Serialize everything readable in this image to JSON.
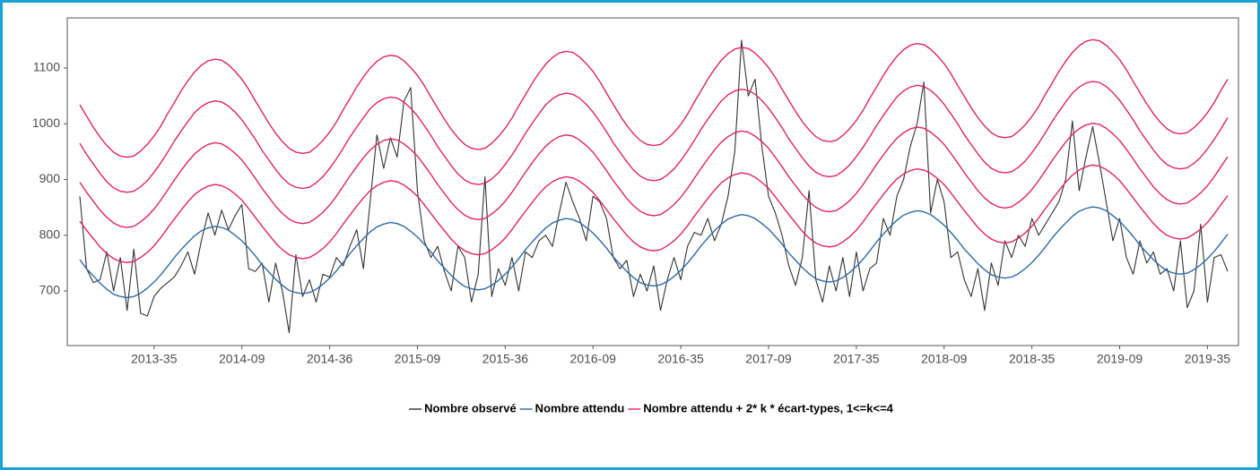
{
  "chart_data": {
    "type": "line",
    "categories": [
      null,
      null,
      null,
      null,
      null,
      null,
      null,
      null,
      null,
      null,
      null,
      "2013-35",
      null,
      null,
      null,
      null,
      null,
      null,
      null,
      null,
      null,
      null,
      null,
      null,
      "2014-09",
      null,
      null,
      null,
      null,
      null,
      null,
      null,
      null,
      null,
      null,
      null,
      null,
      "2014-36",
      null,
      null,
      null,
      null,
      null,
      null,
      null,
      null,
      null,
      null,
      null,
      null,
      "2015-09",
      null,
      null,
      null,
      null,
      null,
      null,
      null,
      null,
      null,
      null,
      null,
      null,
      "2015-36",
      null,
      null,
      null,
      null,
      null,
      null,
      null,
      null,
      null,
      null,
      null,
      null,
      "2016-09",
      null,
      null,
      null,
      null,
      null,
      null,
      null,
      null,
      null,
      null,
      null,
      null,
      "2016-35",
      null,
      null,
      null,
      null,
      null,
      null,
      null,
      null,
      null,
      null,
      null,
      null,
      "2017-09",
      null,
      null,
      null,
      null,
      null,
      null,
      null,
      null,
      null,
      null,
      null,
      null,
      "2017-35",
      null,
      null,
      null,
      null,
      null,
      null,
      null,
      null,
      null,
      null,
      null,
      null,
      "2018-09",
      null,
      null,
      null,
      null,
      null,
      null,
      null,
      null,
      null,
      null,
      null,
      null,
      "2018-35",
      null,
      null,
      null,
      null,
      null,
      null,
      null,
      null,
      null,
      null,
      null,
      null,
      "2019-09",
      null,
      null,
      null,
      null,
      null,
      null,
      null,
      null,
      null,
      null,
      null,
      null,
      "2019-35",
      null,
      null,
      null
    ],
    "series": [
      {
        "name": "Nombre observé",
        "color": "#333333",
        "values": [
          870,
          740,
          715,
          720,
          770,
          700,
          760,
          665,
          775,
          660,
          655,
          690,
          705,
          715,
          725,
          745,
          770,
          730,
          790,
          840,
          800,
          845,
          810,
          835,
          855,
          740,
          735,
          750,
          680,
          750,
          700,
          625,
          765,
          690,
          720,
          680,
          730,
          725,
          760,
          745,
          780,
          810,
          740,
          860,
          980,
          920,
          975,
          940,
          1040,
          1065,
          880,
          790,
          760,
          780,
          735,
          700,
          780,
          760,
          680,
          730,
          905,
          690,
          740,
          710,
          760,
          700,
          770,
          760,
          790,
          800,
          780,
          840,
          895,
          860,
          830,
          790,
          870,
          860,
          830,
          760,
          740,
          755,
          690,
          730,
          700,
          745,
          665,
          720,
          760,
          720,
          780,
          805,
          800,
          830,
          790,
          820,
          870,
          950,
          1150,
          1050,
          1080,
          960,
          870,
          840,
          800,
          745,
          710,
          760,
          880,
          720,
          680,
          745,
          700,
          760,
          690,
          770,
          700,
          740,
          750,
          830,
          800,
          870,
          900,
          960,
          1000,
          1075,
          840,
          900,
          860,
          760,
          770,
          720,
          690,
          740,
          665,
          750,
          710,
          790,
          760,
          800,
          780,
          830,
          800,
          820,
          840,
          860,
          900,
          1005,
          880,
          940,
          995,
          930,
          860,
          790,
          830,
          760,
          730,
          790,
          750,
          770,
          730,
          740,
          700,
          790,
          670,
          700,
          820,
          680,
          760,
          765,
          735
        ]
      },
      {
        "name": "Nombre attendu",
        "color": "#2d6aa6",
        "values": [
          756,
          740,
          727,
          714,
          703,
          694,
          690,
          688,
          690,
          696,
          705,
          716,
          729,
          744,
          760,
          774,
          787,
          799,
          808,
          813,
          816,
          814,
          809,
          800,
          790,
          777,
          763,
          747,
          734,
          721,
          710,
          701,
          697,
          695,
          697,
          703,
          712,
          723,
          736,
          751,
          767,
          781,
          794,
          806,
          815,
          820,
          823,
          821,
          816,
          807,
          797,
          784,
          770,
          754,
          741,
          728,
          717,
          708,
          704,
          702,
          704,
          710,
          719,
          730,
          743,
          758,
          774,
          788,
          801,
          813,
          822,
          827,
          830,
          828,
          823,
          814,
          804,
          791,
          777,
          761,
          748,
          735,
          724,
          715,
          711,
          709,
          711,
          717,
          726,
          737,
          750,
          765,
          781,
          795,
          808,
          820,
          829,
          834,
          837,
          835,
          830,
          821,
          811,
          798,
          784,
          768,
          755,
          742,
          731,
          722,
          718,
          716,
          718,
          724,
          733,
          744,
          757,
          772,
          788,
          802,
          815,
          827,
          836,
          841,
          844,
          842,
          837,
          828,
          818,
          805,
          791,
          775,
          762,
          749,
          738,
          729,
          725,
          723,
          725,
          731,
          740,
          751,
          764,
          779,
          795,
          809,
          822,
          834,
          843,
          848,
          851,
          849,
          844,
          835,
          825,
          812,
          798,
          782,
          769,
          756,
          745,
          736,
          732,
          730,
          732,
          738,
          747,
          758,
          771,
          786,
          802
        ]
      },
      {
        "name": "Nombre attendu + 2* k * écart-types, 1<=k<=4",
        "color": "#e0245e",
        "values": [
          [
            825,
            809,
            794,
            779,
            767,
            758,
            753,
            751,
            753,
            760,
            769,
            781,
            796,
            813,
            829,
            845,
            860,
            873,
            882,
            888,
            891,
            889,
            883,
            874,
            863,
            848,
            832,
            816,
            801,
            786,
            774,
            765,
            760,
            758,
            760,
            767,
            776,
            788,
            803,
            820,
            836,
            852,
            867,
            880,
            889,
            895,
            898,
            896,
            890,
            881,
            870,
            855,
            839,
            823,
            808,
            793,
            781,
            772,
            767,
            765,
            767,
            774,
            783,
            795,
            810,
            827,
            843,
            859,
            874,
            887,
            896,
            902,
            905,
            903,
            897,
            888,
            877,
            862,
            846,
            830,
            815,
            800,
            788,
            779,
            774,
            772,
            774,
            781,
            790,
            802,
            817,
            834,
            850,
            866,
            881,
            894,
            903,
            909,
            912,
            910,
            904,
            895,
            884,
            869,
            853,
            837,
            822,
            807,
            795,
            786,
            781,
            779,
            781,
            788,
            797,
            809,
            824,
            841,
            857,
            873,
            888,
            901,
            910,
            916,
            919,
            917,
            911,
            902,
            891,
            876,
            860,
            844,
            829,
            814,
            802,
            793,
            788,
            786,
            788,
            795,
            804,
            816,
            831,
            848,
            864,
            880,
            895,
            908,
            917,
            923,
            926,
            924,
            918,
            909,
            898,
            883,
            867,
            851,
            836,
            821,
            809,
            800,
            795,
            793,
            795,
            802,
            811,
            823,
            838,
            855,
            871
          ],
          [
            895,
            877,
            861,
            845,
            832,
            822,
            816,
            814,
            816,
            824,
            834,
            847,
            863,
            881,
            899,
            916,
            932,
            946,
            956,
            963,
            966,
            964,
            957,
            947,
            935,
            919,
            902,
            884,
            868,
            852,
            839,
            829,
            823,
            821,
            823,
            831,
            841,
            854,
            870,
            888,
            906,
            923,
            939,
            953,
            963,
            970,
            973,
            971,
            964,
            954,
            942,
            926,
            909,
            891,
            875,
            859,
            846,
            836,
            830,
            828,
            830,
            838,
            848,
            861,
            877,
            895,
            913,
            930,
            946,
            960,
            970,
            977,
            980,
            978,
            971,
            961,
            949,
            933,
            916,
            898,
            882,
            866,
            853,
            843,
            837,
            835,
            837,
            845,
            855,
            868,
            884,
            902,
            920,
            937,
            953,
            967,
            977,
            984,
            987,
            985,
            978,
            968,
            956,
            940,
            923,
            905,
            889,
            873,
            860,
            850,
            844,
            842,
            844,
            852,
            862,
            875,
            891,
            909,
            927,
            944,
            960,
            974,
            984,
            991,
            994,
            992,
            985,
            975,
            963,
            947,
            930,
            912,
            896,
            880,
            867,
            857,
            851,
            849,
            851,
            859,
            869,
            882,
            898,
            916,
            934,
            951,
            967,
            981,
            991,
            998,
            1001,
            999,
            992,
            982,
            970,
            954,
            937,
            919,
            903,
            887,
            874,
            864,
            858,
            856,
            858,
            866,
            876,
            889,
            905,
            923,
            941
          ],
          [
            965,
            945,
            928,
            911,
            896,
            885,
            879,
            877,
            879,
            887,
            898,
            913,
            930,
            949,
            969,
            987,
            1004,
            1020,
            1031,
            1038,
            1041,
            1039,
            1032,
            1021,
            1007,
            990,
            972,
            952,
            935,
            918,
            903,
            892,
            886,
            884,
            886,
            894,
            905,
            920,
            937,
            956,
            976,
            994,
            1011,
            1027,
            1038,
            1045,
            1048,
            1046,
            1039,
            1028,
            1014,
            997,
            979,
            959,
            942,
            925,
            910,
            899,
            893,
            891,
            893,
            901,
            912,
            927,
            944,
            963,
            983,
            1001,
            1018,
            1034,
            1045,
            1052,
            1055,
            1053,
            1046,
            1035,
            1021,
            1004,
            986,
            966,
            949,
            932,
            917,
            906,
            900,
            898,
            900,
            908,
            919,
            934,
            951,
            970,
            990,
            1008,
            1025,
            1041,
            1052,
            1059,
            1062,
            1060,
            1053,
            1042,
            1028,
            1011,
            993,
            973,
            956,
            939,
            924,
            913,
            907,
            905,
            907,
            915,
            926,
            941,
            958,
            977,
            997,
            1015,
            1032,
            1048,
            1059,
            1066,
            1069,
            1067,
            1060,
            1049,
            1035,
            1018,
            1000,
            980,
            963,
            946,
            931,
            920,
            914,
            912,
            914,
            922,
            933,
            948,
            965,
            984,
            1004,
            1022,
            1039,
            1055,
            1066,
            1073,
            1076,
            1074,
            1067,
            1056,
            1042,
            1025,
            1007,
            987,
            970,
            953,
            938,
            927,
            921,
            919,
            921,
            929,
            940,
            955,
            972,
            991,
            1011
          ],
          [
            1034,
            1014,
            994,
            976,
            961,
            949,
            942,
            940,
            942,
            951,
            963,
            978,
            996,
            1018,
            1038,
            1059,
            1077,
            1093,
            1105,
            1113,
            1116,
            1114,
            1106,
            1094,
            1080,
            1062,
            1041,
            1021,
            1001,
            983,
            968,
            956,
            949,
            947,
            949,
            958,
            970,
            985,
            1003,
            1025,
            1045,
            1066,
            1084,
            1100,
            1112,
            1120,
            1123,
            1121,
            1113,
            1101,
            1087,
            1069,
            1048,
            1028,
            1008,
            990,
            975,
            963,
            956,
            954,
            956,
            965,
            977,
            992,
            1010,
            1032,
            1052,
            1073,
            1091,
            1107,
            1119,
            1127,
            1130,
            1128,
            1120,
            1108,
            1094,
            1076,
            1055,
            1035,
            1015,
            997,
            982,
            970,
            963,
            961,
            963,
            972,
            984,
            999,
            1017,
            1039,
            1059,
            1080,
            1098,
            1114,
            1126,
            1134,
            1137,
            1135,
            1127,
            1115,
            1101,
            1083,
            1062,
            1042,
            1022,
            1004,
            989,
            977,
            970,
            968,
            970,
            979,
            991,
            1006,
            1024,
            1046,
            1066,
            1087,
            1105,
            1121,
            1133,
            1141,
            1144,
            1142,
            1134,
            1122,
            1108,
            1090,
            1069,
            1049,
            1029,
            1011,
            996,
            984,
            977,
            975,
            977,
            986,
            998,
            1013,
            1031,
            1053,
            1073,
            1094,
            1112,
            1128,
            1140,
            1148,
            1151,
            1149,
            1141,
            1129,
            1115,
            1097,
            1076,
            1056,
            1036,
            1018,
            1003,
            991,
            984,
            982,
            984,
            993,
            1005,
            1020,
            1038,
            1060,
            1080
          ]
        ]
      }
    ],
    "ylim": [
      602,
      1190
    ],
    "yticks": [
      700,
      800,
      900,
      1000,
      1100
    ],
    "grid": false,
    "legend": "bottom"
  }
}
